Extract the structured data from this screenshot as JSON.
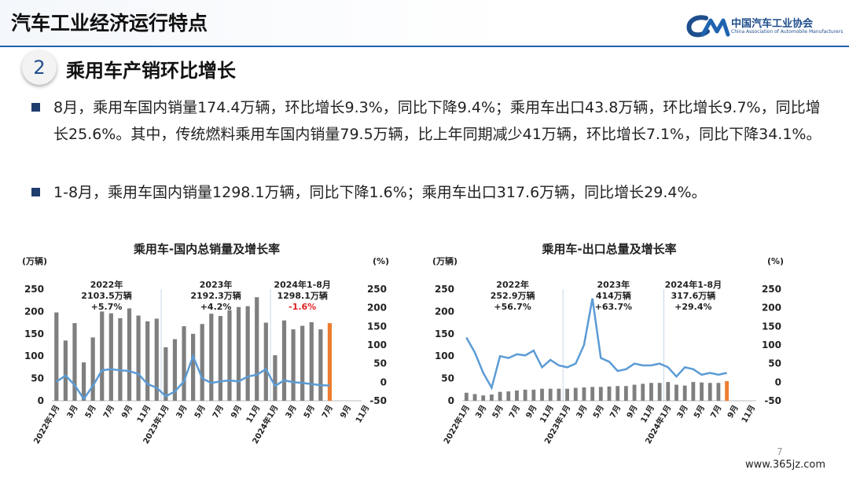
{
  "header": {
    "title": "汽车工业经济运行特点"
  },
  "logo": {
    "cn": "中国汽车工业协会",
    "en": "China Association of Automobile Manufacturers"
  },
  "section": {
    "number": "2",
    "title": "乘用车产销环比增长"
  },
  "bullets": [
    "8月，乘用车国内销量174.4万辆，环比增长9.3%，同比下降9.4%；乘用车出口43.8万辆，环比增长9.7%，同比增长25.6%。其中，传统燃料乘用车国内销量79.5万辆，比上年同期减少41万辆，环比增长7.1%，同比下降34.1%。",
    "1-8月，乘用车国内销量1298.1万辆，同比下降1.6%；乘用车出口317.6万辆，同比增长29.4%。"
  ],
  "page_number": "7",
  "watermark": "www.365jz.com",
  "colors": {
    "bar": "#7f7f7f",
    "highlight": "#ed7d31",
    "line": "#5b9bd5",
    "accent": "#1f63b0",
    "negative": "#e02020"
  },
  "chart_data": [
    {
      "type": "bar",
      "title": "乘用车-国内总销量及增长率",
      "ylabel_left": "(万辆)",
      "ylabel_right": "(%)",
      "ylim_left": [
        0,
        250
      ],
      "ylim_right": [
        -50,
        250
      ],
      "yticks_left": [
        "0",
        "50",
        "100",
        "150",
        "200",
        "250"
      ],
      "yticks_right": [
        "-50",
        "0",
        "50",
        "100",
        "150",
        "200",
        "250"
      ],
      "tick_labels": [
        "2022年1月",
        "3月",
        "5月",
        "7月",
        "9月",
        "11月",
        "2023年1月",
        "3月",
        "5月",
        "7月",
        "9月",
        "11月",
        "2024年1月",
        "3月",
        "5月",
        "7月",
        "9月",
        "11月"
      ],
      "series": [
        {
          "name": "销量",
          "values": [
            198,
            135,
            174,
            86,
            142,
            200,
            196,
            185,
            207,
            191,
            178,
            184,
            120,
            138,
            167,
            150,
            172,
            195,
            190,
            203,
            210,
            212,
            232,
            175,
            102,
            180,
            160,
            168,
            176,
            160,
            174
          ]
        },
        {
          "name": "增长率",
          "values": [
            1,
            18,
            -8,
            -45,
            -10,
            32,
            35,
            32,
            30,
            22,
            -5,
            -15,
            -38,
            -25,
            2,
            70,
            10,
            -2,
            2,
            5,
            2,
            15,
            20,
            35,
            -10,
            5,
            0,
            -2,
            -5,
            -8,
            -9
          ]
        }
      ],
      "annotations": [
        {
          "label": "2022年",
          "value": "2103.5万辆",
          "growth": "+5.7%"
        },
        {
          "label": "2023年",
          "value": "2192.3万辆",
          "growth": "+4.2%"
        },
        {
          "label": "2024年1-8月",
          "value": "1298.1万辆",
          "growth": "-1.6%"
        }
      ]
    },
    {
      "type": "line",
      "title": "乘用车-出口总量及增长率",
      "ylabel_left": "(万辆)",
      "ylabel_right": "(%)",
      "ylim_left": [
        0,
        250
      ],
      "ylim_right": [
        -50,
        250
      ],
      "yticks_left": [
        "0",
        "50",
        "100",
        "150",
        "200",
        "250"
      ],
      "yticks_right": [
        "-50",
        "0",
        "50",
        "100",
        "150",
        "200",
        "250"
      ],
      "tick_labels": [
        "2022年1月",
        "3月",
        "5月",
        "7月",
        "9月",
        "11月",
        "2023年1月",
        "3月",
        "5月",
        "7月",
        "9月",
        "11月",
        "2024年1月",
        "3月",
        "5月",
        "7月",
        "9月",
        "11月"
      ],
      "series": [
        {
          "name": "出口量",
          "values": [
            18,
            15,
            12,
            14,
            20,
            21,
            23,
            25,
            25,
            27,
            27,
            27,
            27,
            29,
            30,
            31,
            31,
            32,
            33,
            33,
            36,
            38,
            40,
            40,
            42,
            36,
            34,
            42,
            41,
            40,
            40,
            44
          ]
        },
        {
          "name": "增长率",
          "values": [
            120,
            80,
            25,
            -15,
            70,
            65,
            75,
            72,
            85,
            40,
            60,
            45,
            40,
            50,
            100,
            225,
            65,
            55,
            30,
            35,
            50,
            45,
            45,
            50,
            40,
            15,
            40,
            35,
            20,
            25,
            20,
            25
          ]
        }
      ],
      "annotations": [
        {
          "label": "2022年",
          "value": "252.9万辆",
          "growth": "+56.7%"
        },
        {
          "label": "2023年",
          "value": "414万辆",
          "growth": "+63.7%"
        },
        {
          "label": "2024年1-8月",
          "value": "317.6万辆",
          "growth": "+29.4%"
        }
      ]
    }
  ]
}
